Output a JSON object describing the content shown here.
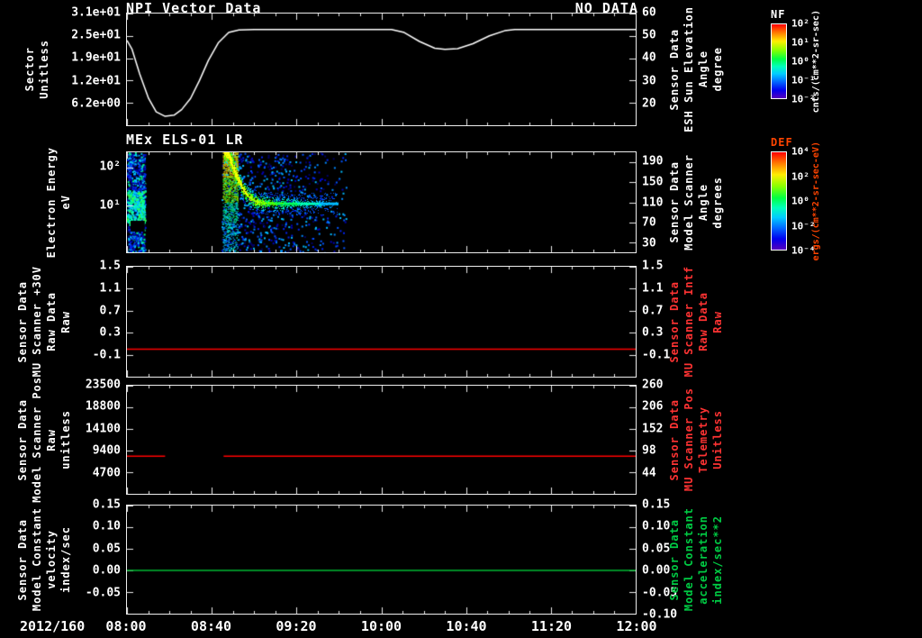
{
  "titles": {
    "panel1": "NPI Vector Data",
    "no_data": "NO DATA",
    "panel2": "MEx ELS-01 LR"
  },
  "x_axis": {
    "date_label": "2012/160",
    "range": [
      8,
      12
    ],
    "ticks": [
      {
        "t": 8.0,
        "label": "08:00"
      },
      {
        "t": 8.6667,
        "label": "08:40"
      },
      {
        "t": 9.3333,
        "label": "09:20"
      },
      {
        "t": 10.0,
        "label": "10:00"
      },
      {
        "t": 10.6667,
        "label": "10:40"
      },
      {
        "t": 11.3333,
        "label": "11:20"
      },
      {
        "t": 12.0,
        "label": "12:00"
      }
    ]
  },
  "colorbars": [
    {
      "name": "NF",
      "title_color": "#ffffff",
      "ticks": [
        "10²",
        "10¹",
        "10⁰",
        "10⁻¹",
        "10⁻²"
      ],
      "caption": "cnts/(cm**2-sr-sec)",
      "caption_color": "#ffffff"
    },
    {
      "name": "DEF",
      "title_color": "#ff4400",
      "ticks": [
        "10⁴",
        "10²",
        "10⁰",
        "10⁻²",
        "10⁻⁴"
      ],
      "caption": "ergs/(cm**2-sr-sec-eV)",
      "caption_color": "#ff4400"
    }
  ],
  "chart_data": {
    "type": "multi-panel-time-series",
    "panels": [
      {
        "name": "npi-vector",
        "left_axis": {
          "label_lines": [
            "Sector",
            "Unitless"
          ],
          "color": "#ffffff",
          "range": [
            0,
            31
          ],
          "ticks": [
            {
              "v": 31,
              "label": "3.1e+01"
            },
            {
              "v": 24.8,
              "label": "2.5e+01"
            },
            {
              "v": 18.6,
              "label": "1.9e+01"
            },
            {
              "v": 12.4,
              "label": "1.2e+01"
            },
            {
              "v": 6.2,
              "label": "6.2e+00"
            }
          ]
        },
        "right_axis": {
          "label_lines": [
            "Sensor Data",
            "ESH Sun Elevation",
            "Angle",
            "degree"
          ],
          "color": "#ffffff",
          "range": [
            10,
            60
          ],
          "ticks": [
            {
              "v": 60,
              "label": "60"
            },
            {
              "v": 50,
              "label": "50"
            },
            {
              "v": 40,
              "label": "40"
            },
            {
              "v": 30,
              "label": "30"
            },
            {
              "v": 20,
              "label": "20"
            }
          ]
        },
        "series": [
          {
            "name": "sun-elevation-curve",
            "color": "#ffffff",
            "axis": "right",
            "width": 1.5,
            "segments": [
              [
                [
                  8.0,
                  48
                ],
                [
                  8.04,
                  44
                ],
                [
                  8.1,
                  33
                ],
                [
                  8.17,
                  22
                ],
                [
                  8.23,
                  16
                ],
                [
                  8.3,
                  14
                ],
                [
                  8.37,
                  14.5
                ],
                [
                  8.43,
                  17
                ],
                [
                  8.5,
                  22
                ],
                [
                  8.57,
                  30
                ],
                [
                  8.64,
                  39
                ],
                [
                  8.72,
                  47
                ],
                [
                  8.8,
                  51.5
                ],
                [
                  8.88,
                  52.6
                ],
                [
                  9.0,
                  52.8
                ],
                [
                  10.08,
                  52.8
                ],
                [
                  10.18,
                  51.5
                ],
                [
                  10.3,
                  47.5
                ],
                [
                  10.42,
                  44.5
                ],
                [
                  10.5,
                  44
                ],
                [
                  10.6,
                  44.3
                ],
                [
                  10.72,
                  46.5
                ],
                [
                  10.85,
                  50
                ],
                [
                  10.97,
                  52.3
                ],
                [
                  11.05,
                  52.8
                ],
                [
                  12.0,
                  52.8
                ]
              ]
            ]
          }
        ]
      },
      {
        "name": "els-spectrogram",
        "left_axis": {
          "label_lines": [
            "Electron Energy",
            "eV"
          ],
          "color": "#ffffff",
          "range": [
            0.6,
            250
          ],
          "log": true,
          "ticks": [
            {
              "v": 100,
              "label": "10²"
            },
            {
              "v": 10,
              "label": "10¹"
            }
          ]
        },
        "right_axis": {
          "label_lines": [
            "Sensor Data",
            "Model Scanner",
            "Angle",
            "degrees"
          ],
          "color": "#ffffff",
          "range": [
            10,
            210
          ],
          "ticks": [
            {
              "v": 190,
              "label": "190"
            },
            {
              "v": 150,
              "label": "150"
            },
            {
              "v": 110,
              "label": "110"
            },
            {
              "v": 70,
              "label": "70"
            },
            {
              "v": 30,
              "label": "30"
            }
          ]
        },
        "spectrogram": {
          "energy_range_ev": [
            0.6,
            250
          ],
          "features": [
            {
              "type": "speckle-column",
              "t": [
                8.0,
                8.14
              ],
              "palette": "blue-cyan"
            },
            {
              "type": "burst-stripe",
              "t": [
                8.755,
                8.875
              ]
            },
            {
              "type": "decay-band",
              "t_start": 8.77,
              "t_end": 9.66,
              "settle_energy_ev": 11.5
            },
            {
              "type": "speckle-field",
              "t": [
                8.74,
                9.72
              ],
              "palette": "blue"
            }
          ]
        }
      },
      {
        "name": "mu-scanner-30v",
        "left_axis": {
          "label_lines": [
            "Sensor Data",
            "MU Scanner +30V",
            "Raw Data",
            "Raw"
          ],
          "color": "#ffffff",
          "range": [
            -0.5,
            1.5
          ],
          "ticks": [
            {
              "v": 1.5,
              "label": "1.5"
            },
            {
              "v": 1.1,
              "label": "1.1"
            },
            {
              "v": 0.7,
              "label": "0.7"
            },
            {
              "v": 0.3,
              "label": "0.3"
            },
            {
              "v": -0.1,
              "label": "-0.1"
            }
          ]
        },
        "right_axis": {
          "label_lines": [
            "Sensor Data",
            "MU Scanner Intf",
            "Raw Data",
            "Raw"
          ],
          "color": "#ff3333",
          "range": [
            -0.5,
            1.5
          ],
          "ticks": [
            {
              "v": 1.5,
              "label": "1.5"
            },
            {
              "v": 1.1,
              "label": "1.1"
            },
            {
              "v": 0.7,
              "label": "0.7"
            },
            {
              "v": 0.3,
              "label": "0.3"
            },
            {
              "v": -0.1,
              "label": "-0.1"
            }
          ]
        },
        "series": [
          {
            "name": "mu-scanner-line",
            "color": "#ff0000",
            "axis": "left",
            "width": 1.5,
            "segments": [
              [
                [
                  8.0,
                  0.0
                ],
                [
                  12.0,
                  0.0
                ]
              ]
            ]
          }
        ]
      },
      {
        "name": "model-scanner-pos",
        "left_axis": {
          "label_lines": [
            "Sensor Data",
            "Model Scanner Pos",
            "Raw",
            "unitless"
          ],
          "color": "#ffffff",
          "range": [
            0,
            23500
          ],
          "ticks": [
            {
              "v": 23500,
              "label": "23500"
            },
            {
              "v": 18800,
              "label": "18800"
            },
            {
              "v": 14100,
              "label": "14100"
            },
            {
              "v": 9400,
              "label": "9400"
            },
            {
              "v": 4700,
              "label": "4700"
            }
          ]
        },
        "right_axis": {
          "label_lines": [
            "Sensor Data",
            "MU Scanner Pos",
            "Telemetry",
            "Unitless"
          ],
          "color": "#ff3333",
          "range": [
            -10,
            260
          ],
          "ticks": [
            {
              "v": 260,
              "label": "260"
            },
            {
              "v": 206,
              "label": "206"
            },
            {
              "v": 152,
              "label": "152"
            },
            {
              "v": 98,
              "label": "98"
            },
            {
              "v": 44,
              "label": "44"
            }
          ]
        },
        "series": [
          {
            "name": "scanner-pos-line",
            "color": "#ff0000",
            "axis": "left",
            "width": 1.5,
            "segments": [
              [
                [
                  8.0,
                  8200
                ],
                [
                  8.3,
                  8200
                ]
              ],
              [
                [
                  8.76,
                  8200
                ],
                [
                  12.0,
                  8200
                ]
              ]
            ]
          }
        ]
      },
      {
        "name": "model-constant-velocity",
        "left_axis": {
          "label_lines": [
            "Sensor Data",
            "Model Constant",
            "velocity",
            "index/sec"
          ],
          "color": "#ffffff",
          "range": [
            -0.1,
            0.15
          ],
          "ticks": [
            {
              "v": 0.15,
              "label": "0.15"
            },
            {
              "v": 0.1,
              "label": "0.10"
            },
            {
              "v": 0.05,
              "label": "0.05"
            },
            {
              "v": 0.0,
              "label": "0.00"
            },
            {
              "v": -0.05,
              "label": "-0.05"
            }
          ]
        },
        "right_axis": {
          "label_lines": [
            "Sensor Data",
            "Model Constant",
            "acceleration",
            "index/sec**2"
          ],
          "color": "#00cc44",
          "range": [
            -0.1,
            0.15
          ],
          "ticks": [
            {
              "v": 0.15,
              "label": "0.15"
            },
            {
              "v": 0.1,
              "label": "0.10"
            },
            {
              "v": 0.05,
              "label": "0.05"
            },
            {
              "v": 0.0,
              "label": "0.00"
            },
            {
              "v": -0.05,
              "label": "-0.05"
            },
            {
              "v": -0.1,
              "label": "-0.10"
            }
          ]
        },
        "series": [
          {
            "name": "velocity-line",
            "color": "#00bb33",
            "axis": "left",
            "width": 1.5,
            "segments": [
              [
                [
                  8.0,
                  0.0
                ],
                [
                  12.0,
                  0.0
                ]
              ]
            ]
          }
        ]
      }
    ]
  }
}
